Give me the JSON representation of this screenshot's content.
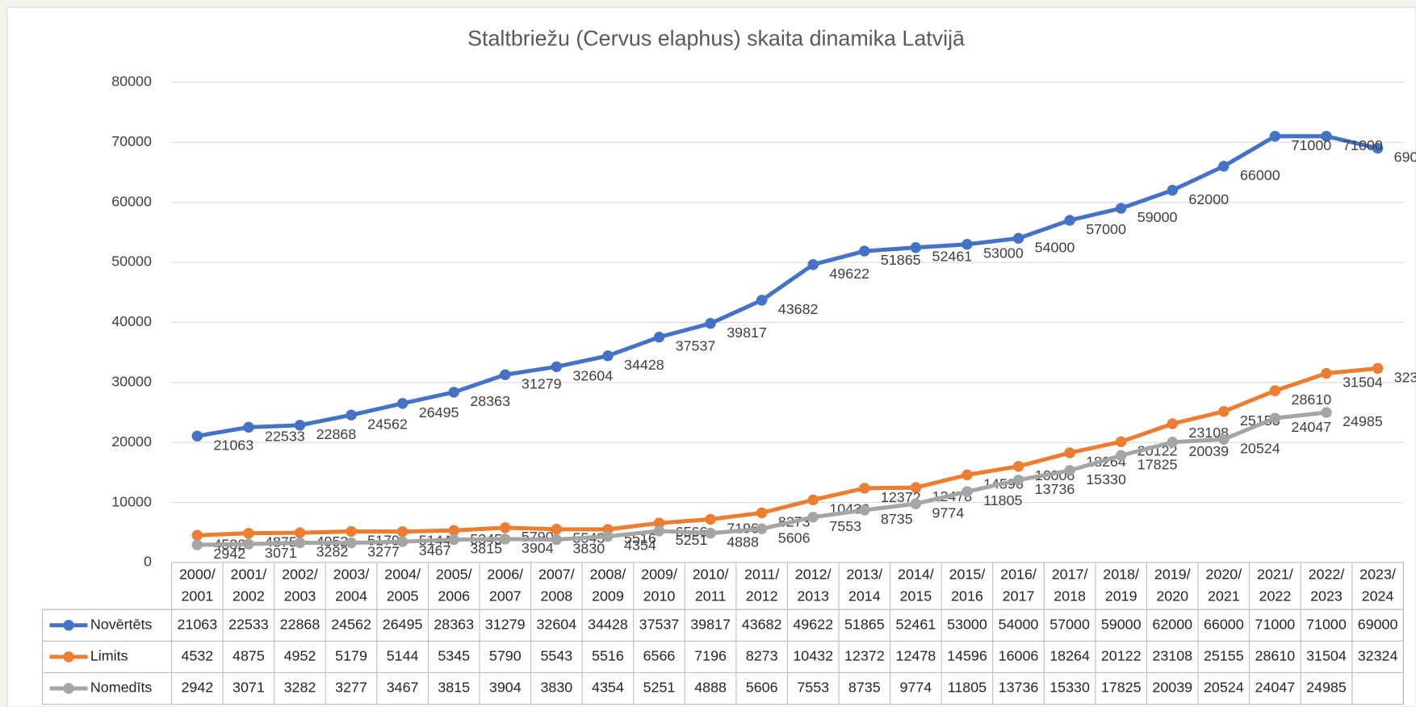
{
  "chart_data": {
    "type": "line",
    "title": "Staltbriežu (Cervus elaphus) skaita dinamika Latvijā",
    "categories": [
      "2000/2001",
      "2001/2002",
      "2002/2003",
      "2003/2004",
      "2004/2005",
      "2005/2006",
      "2006/2007",
      "2007/2008",
      "2008/2009",
      "2009/2010",
      "2010/2011",
      "2011/2012",
      "2012/2013",
      "2013/2014",
      "2014/2015",
      "2015/2016",
      "2016/2017",
      "2017/2018",
      "2018/2019",
      "2019/2020",
      "2020/2021",
      "2021/2022",
      "2022/2023",
      "2023/2024"
    ],
    "series": [
      {
        "name": "Novērtēts",
        "color": "#4472c4",
        "values": [
          21063,
          22533,
          22868,
          24562,
          26495,
          28363,
          31279,
          32604,
          34428,
          37537,
          39817,
          43682,
          49622,
          51865,
          52461,
          53000,
          54000,
          57000,
          59000,
          62000,
          66000,
          71000,
          71000,
          69000
        ]
      },
      {
        "name": "Limits",
        "color": "#ed7d31",
        "values": [
          4532,
          4875,
          4952,
          5179,
          5144,
          5345,
          5790,
          5543,
          5516,
          6566,
          7196,
          8273,
          10432,
          12372,
          12478,
          14596,
          16006,
          18264,
          20122,
          23108,
          25155,
          28610,
          31504,
          32324
        ]
      },
      {
        "name": "Nomedīts",
        "color": "#a5a5a5",
        "values": [
          2942,
          3071,
          3282,
          3277,
          3467,
          3815,
          3904,
          3830,
          4354,
          5251,
          4888,
          5606,
          7553,
          8735,
          9774,
          11805,
          13736,
          15330,
          17825,
          20039,
          20524,
          24047,
          24985,
          null
        ]
      }
    ],
    "ylim": [
      0,
      80000
    ],
    "yticks": [
      0,
      10000,
      20000,
      30000,
      40000,
      50000,
      60000,
      70000,
      80000
    ],
    "grid": true,
    "data_table": true
  }
}
